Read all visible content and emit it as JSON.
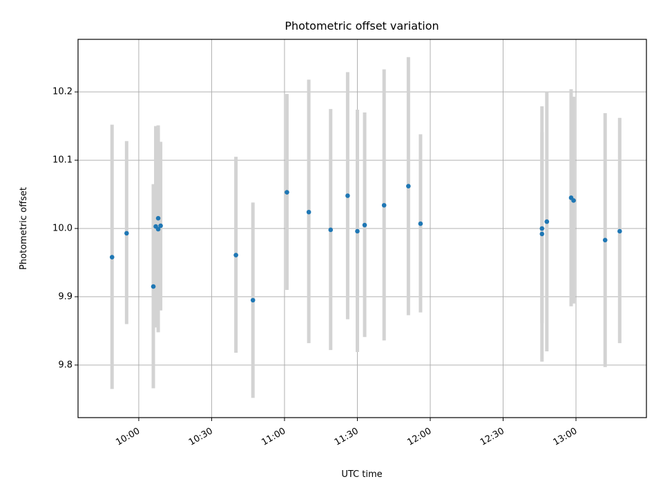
{
  "chart_data": {
    "type": "scatter",
    "title": "Photometric offset variation",
    "xlabel": "UTC time",
    "ylabel": "Photometric offset",
    "xlim": [
      "09:35",
      "13:29"
    ],
    "ylim": [
      9.723,
      10.277
    ],
    "x_ticks": [
      "10:00",
      "10:30",
      "11:00",
      "11:30",
      "12:00",
      "12:30",
      "13:00"
    ],
    "y_ticks": [
      9.8,
      9.9,
      10.0,
      10.1,
      10.2
    ],
    "y_tick_labels": [
      "9.8",
      "9.9",
      "10.0",
      "10.1",
      "10.2"
    ],
    "grid": true,
    "colors": {
      "point": "#1f77b4",
      "errorbar": "#d3d3d3",
      "grid": "#b0b0b0",
      "axis": "#000000"
    },
    "series": [
      {
        "points": [
          {
            "x": "09:49",
            "y": 9.958,
            "ylow": 9.765,
            "yhigh": 10.152
          },
          {
            "x": "09:55",
            "y": 9.993,
            "ylow": 9.86,
            "yhigh": 10.128
          },
          {
            "x": "10:06",
            "y": 9.915,
            "ylow": 9.766,
            "yhigh": 10.065
          },
          {
            "x": "10:07",
            "y": 10.003,
            "ylow": 9.855,
            "yhigh": 10.15
          },
          {
            "x": "10:08",
            "y": 9.999,
            "ylow": 9.848,
            "yhigh": 10.151
          },
          {
            "x": "10:08",
            "y": 10.015,
            "ylow": 9.88,
            "yhigh": 10.14
          },
          {
            "x": "10:09",
            "y": 10.004,
            "ylow": 9.88,
            "yhigh": 10.127
          },
          {
            "x": "10:40",
            "y": 9.961,
            "ylow": 9.818,
            "yhigh": 10.105
          },
          {
            "x": "10:47",
            "y": 9.895,
            "ylow": 9.752,
            "yhigh": 10.038
          },
          {
            "x": "11:01",
            "y": 10.053,
            "ylow": 9.91,
            "yhigh": 10.197
          },
          {
            "x": "11:10",
            "y": 10.024,
            "ylow": 9.832,
            "yhigh": 10.218
          },
          {
            "x": "11:19",
            "y": 9.998,
            "ylow": 9.822,
            "yhigh": 10.175
          },
          {
            "x": "11:26",
            "y": 10.048,
            "ylow": 9.867,
            "yhigh": 10.229
          },
          {
            "x": "11:30",
            "y": 9.996,
            "ylow": 9.819,
            "yhigh": 10.174
          },
          {
            "x": "11:33",
            "y": 10.005,
            "ylow": 9.841,
            "yhigh": 10.17
          },
          {
            "x": "11:41",
            "y": 10.034,
            "ylow": 9.836,
            "yhigh": 10.233
          },
          {
            "x": "11:51",
            "y": 10.062,
            "ylow": 9.873,
            "yhigh": 10.251
          },
          {
            "x": "11:56",
            "y": 10.007,
            "ylow": 9.877,
            "yhigh": 10.138
          },
          {
            "x": "12:46",
            "y": 9.992,
            "ylow": 9.805,
            "yhigh": 10.179
          },
          {
            "x": "12:46",
            "y": 10.0,
            "ylow": 9.861,
            "yhigh": 10.141
          },
          {
            "x": "12:48",
            "y": 10.01,
            "ylow": 9.82,
            "yhigh": 10.2
          },
          {
            "x": "12:58",
            "y": 10.045,
            "ylow": 9.886,
            "yhigh": 10.204
          },
          {
            "x": "12:59",
            "y": 10.041,
            "ylow": 9.89,
            "yhigh": 10.193
          },
          {
            "x": "13:12",
            "y": 9.983,
            "ylow": 9.797,
            "yhigh": 10.169
          },
          {
            "x": "13:18",
            "y": 9.996,
            "ylow": 9.832,
            "yhigh": 10.162
          }
        ]
      }
    ]
  }
}
